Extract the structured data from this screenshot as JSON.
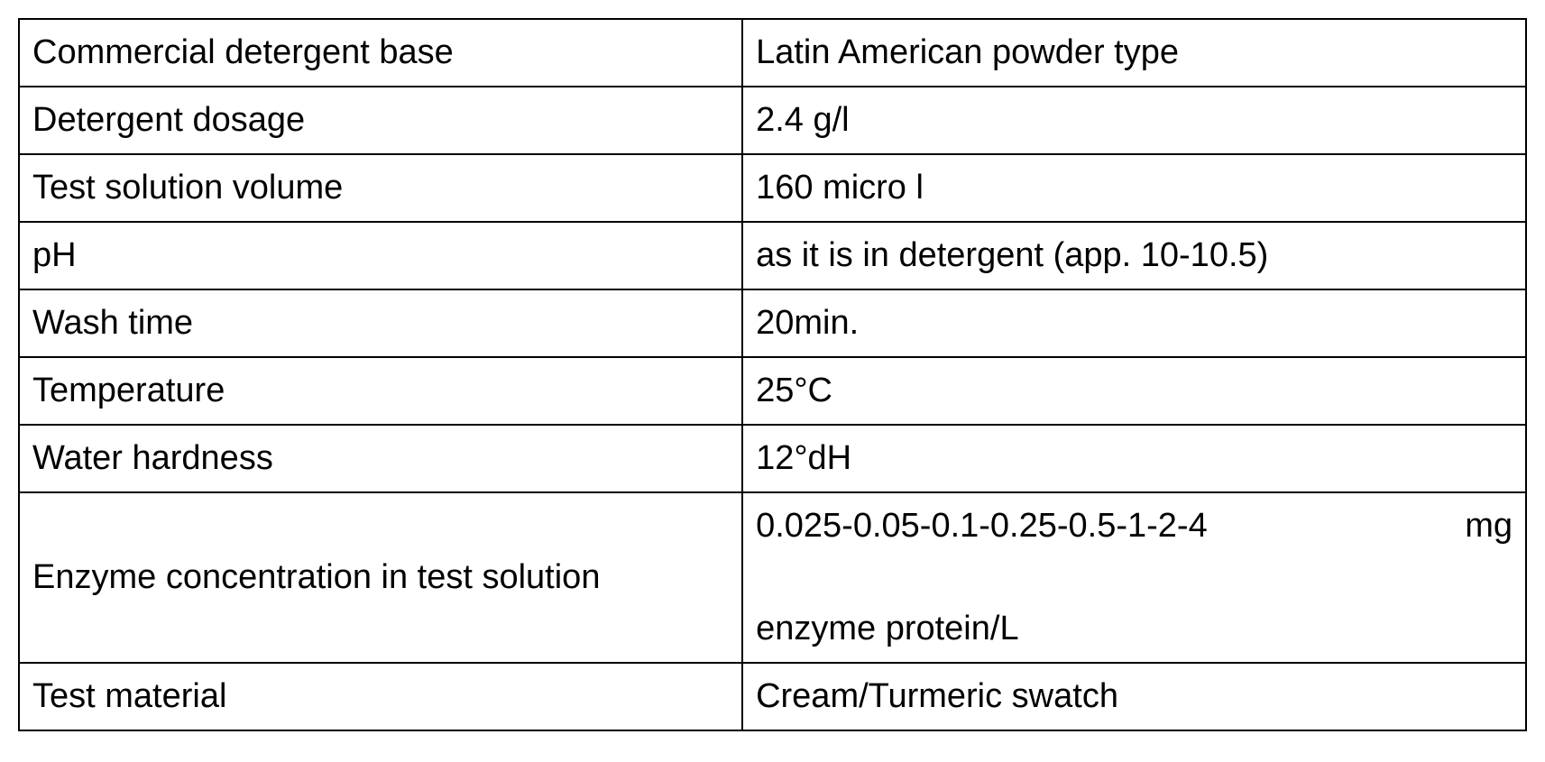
{
  "table": {
    "type": "table",
    "border_color": "#000000",
    "border_width": 2,
    "background_color": "#ffffff",
    "text_color": "#000000",
    "font_size_pt": 28,
    "column_widths_pct": [
      48,
      52
    ],
    "rows": [
      {
        "label": "Commercial detergent base",
        "value": "Latin American powder type"
      },
      {
        "label": "Detergent dosage",
        "value": "2.4 g/l"
      },
      {
        "label": "Test solution volume",
        "value": "160 micro l"
      },
      {
        "label": "pH",
        "value": "as it is in detergent (app. 10-10.5)"
      },
      {
        "label": "Wash time",
        "value": "20min."
      },
      {
        "label": "Temperature",
        "value": "25°C"
      },
      {
        "label": "Water hardness",
        "value": "12°dH"
      },
      {
        "label": "Enzyme concentration in test solution",
        "value_line1": "0.025-0.05-0.1-0.25-0.5-1-2-4",
        "value_line1_suffix": "mg",
        "value_line2": "enzyme protein/L"
      },
      {
        "label": "Test material",
        "value": "Cream/Turmeric swatch"
      }
    ]
  }
}
